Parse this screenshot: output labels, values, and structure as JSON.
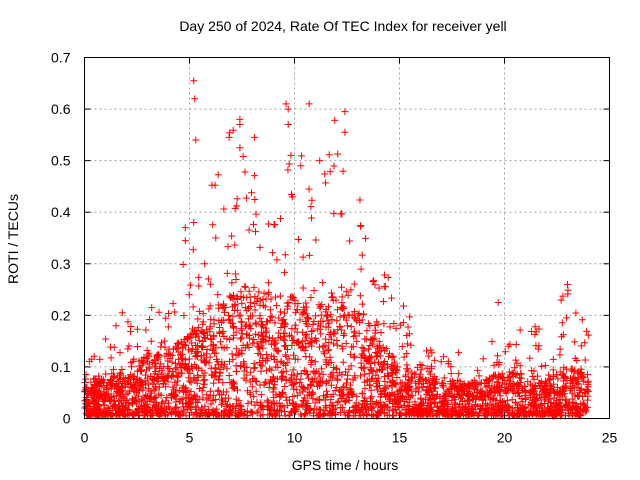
{
  "chart_data": {
    "type": "scatter",
    "title": "Day 250 of 2024, Rate Of TEC Index for receiver yell",
    "xlabel": "GPS time / hours",
    "ylabel": "ROTI / TECUs",
    "xlim": [
      0,
      25
    ],
    "ylim": [
      0,
      0.7
    ],
    "x_ticks": [
      "0",
      "5",
      "10",
      "15",
      "20",
      "25"
    ],
    "y_ticks": [
      "0",
      "0.1",
      "0.2",
      "0.3",
      "0.4",
      "0.5",
      "0.6",
      "0.7"
    ],
    "grid": true,
    "marker": "plus",
    "color": "#ff0000",
    "series": [
      {
        "name": "ROTI",
        "x_range": [
          0,
          24
        ],
        "envelope": {
          "hours": [
            0,
            1,
            2,
            3,
            4,
            5,
            6,
            7,
            8,
            9,
            10,
            11,
            12,
            13,
            14,
            15,
            16,
            17,
            18,
            19,
            20,
            21,
            22,
            23,
            24
          ],
          "dense_max": [
            0.08,
            0.07,
            0.09,
            0.12,
            0.13,
            0.16,
            0.2,
            0.24,
            0.26,
            0.24,
            0.23,
            0.22,
            0.26,
            0.22,
            0.15,
            0.1,
            0.08,
            0.07,
            0.07,
            0.07,
            0.09,
            0.08,
            0.07,
            0.1,
            0.08
          ],
          "sparse_max": [
            0.1,
            0.16,
            0.2,
            0.21,
            0.22,
            0.37,
            0.45,
            0.58,
            0.5,
            0.45,
            0.6,
            0.5,
            0.59,
            0.45,
            0.3,
            0.25,
            0.15,
            0.12,
            0.13,
            0.12,
            0.2,
            0.2,
            0.17,
            0.26,
            0.23
          ]
        },
        "notable_points": [
          {
            "x": 5.2,
            "y": 0.655
          },
          {
            "x": 5.25,
            "y": 0.62
          },
          {
            "x": 5.3,
            "y": 0.54
          },
          {
            "x": 9.6,
            "y": 0.61
          },
          {
            "x": 9.7,
            "y": 0.6
          },
          {
            "x": 10.7,
            "y": 0.61
          },
          {
            "x": 12.4,
            "y": 0.595
          },
          {
            "x": 7.4,
            "y": 0.58
          },
          {
            "x": 7.4,
            "y": 0.57
          },
          {
            "x": 12.4,
            "y": 0.555
          },
          {
            "x": 9.7,
            "y": 0.57
          },
          {
            "x": 8.1,
            "y": 0.545
          },
          {
            "x": 7.4,
            "y": 0.525
          },
          {
            "x": 11.2,
            "y": 0.5
          },
          {
            "x": 10.3,
            "y": 0.49
          },
          {
            "x": 4.8,
            "y": 0.37
          },
          {
            "x": 4.8,
            "y": 0.345
          },
          {
            "x": 5.2,
            "y": 0.38
          },
          {
            "x": 23.0,
            "y": 0.26
          },
          {
            "x": 19.7,
            "y": 0.225
          },
          {
            "x": 1.8,
            "y": 0.205
          },
          {
            "x": 3.2,
            "y": 0.215
          }
        ]
      }
    ]
  }
}
